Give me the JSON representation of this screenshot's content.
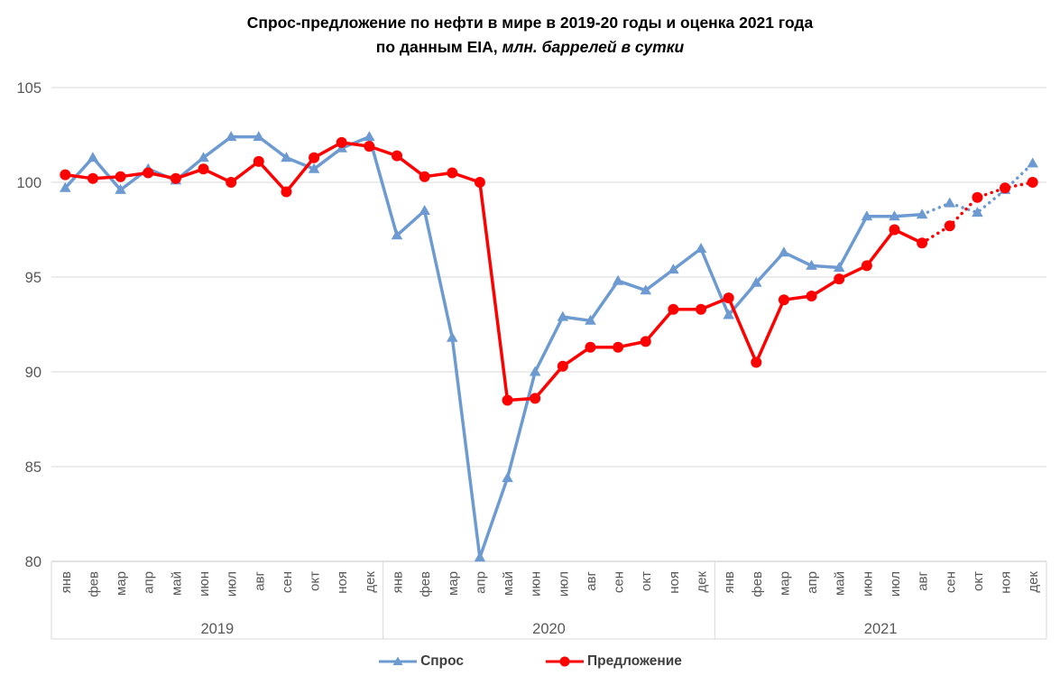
{
  "title": {
    "line1": "Спрос-предложение по нефти в мире в 2019-20 годы и оценка 2021 года",
    "line2_bold": "по данным EIA,",
    "line2_italic": " млн. баррелей в сутки"
  },
  "legend": {
    "demand_label": "Спрос",
    "supply_label": "Предложение"
  },
  "colors": {
    "demand": "#6D9BD1",
    "supply": "#FF0000",
    "gridline": "#D9D9D9",
    "axis_line": "#C6C6C6",
    "axis_text": "#595959",
    "title_text": "#000000",
    "legend_text": "#3F3F3F"
  },
  "chart_data": {
    "type": "line",
    "title": "Спрос-предложение по нефти в мире в 2019-20 годы и оценка 2021 года по данным EIA, млн. баррелей в сутки",
    "ylabel": "млн. баррелей в сутки",
    "ylim": [
      80,
      105
    ],
    "yticks": [
      80,
      85,
      90,
      95,
      100,
      105
    ],
    "grid": true,
    "legend_position": "bottom",
    "years": [
      "2019",
      "2020",
      "2021"
    ],
    "months": [
      "янв",
      "фев",
      "мар",
      "апр",
      "май",
      "июн",
      "июл",
      "авг",
      "сен",
      "окт",
      "ноя",
      "дек"
    ],
    "dotted_estimate_from_index": 31,
    "series": [
      {
        "name": "Спрос",
        "marker": "triangle",
        "color": "#6D9BD1",
        "values": [
          99.7,
          101.3,
          99.6,
          100.7,
          100.1,
          101.3,
          102.4,
          102.4,
          101.3,
          100.7,
          101.8,
          102.4,
          97.2,
          98.5,
          91.8,
          80.2,
          84.4,
          90.0,
          92.9,
          92.7,
          94.8,
          94.3,
          95.4,
          96.5,
          93.0,
          94.7,
          96.3,
          95.6,
          95.5,
          98.2,
          98.2,
          98.3,
          98.9,
          98.4,
          99.6,
          101.0
        ]
      },
      {
        "name": "Предложение",
        "marker": "circle",
        "color": "#FF0000",
        "values": [
          100.4,
          100.2,
          100.3,
          100.5,
          100.2,
          100.7,
          100.0,
          101.1,
          99.5,
          101.3,
          102.1,
          101.9,
          101.4,
          100.3,
          100.5,
          100.0,
          88.5,
          88.6,
          90.3,
          91.3,
          91.3,
          91.6,
          93.3,
          93.3,
          93.9,
          90.5,
          93.8,
          94.0,
          94.9,
          95.6,
          97.5,
          96.8,
          97.7,
          99.2,
          99.7,
          100.0
        ]
      }
    ]
  }
}
